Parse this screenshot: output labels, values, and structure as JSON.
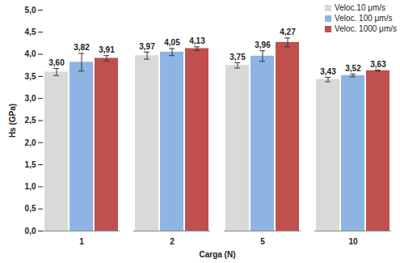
{
  "chart_data": {
    "type": "bar",
    "x_label": "Carga (N)",
    "y_label": "Hs (GPa)",
    "categories": [
      "1",
      "2",
      "5",
      "10"
    ],
    "series": [
      {
        "name": "Veloc.10 μm/s",
        "color": "#d9d9d9",
        "values": [
          3.6,
          3.97,
          3.75,
          3.43
        ],
        "value_labels": [
          "3,60",
          "3,97",
          "3,75",
          "3,43"
        ],
        "errors": [
          0.08,
          0.08,
          0.06,
          0.05
        ]
      },
      {
        "name": "Veloc. 100 μm/s",
        "color": "#8db4e2",
        "values": [
          3.82,
          4.05,
          3.96,
          3.52
        ],
        "value_labels": [
          "3,82",
          "4,05",
          "3,96",
          "3,52"
        ],
        "errors": [
          0.2,
          0.08,
          0.12,
          0.03
        ]
      },
      {
        "name": "Veloc. 1000 μm/s",
        "color": "#c0504d",
        "values": [
          3.91,
          4.13,
          4.27,
          3.63
        ],
        "value_labels": [
          "3,91",
          "4,13",
          "4,27",
          "3,63"
        ],
        "errors": [
          0.06,
          0.04,
          0.1,
          0.01
        ]
      }
    ],
    "ylim": [
      0,
      5
    ],
    "yticks": [
      {
        "value": 0,
        "label": "0,0"
      },
      {
        "value": 0.5,
        "label": "0,5"
      },
      {
        "value": 1,
        "label": "1,0"
      },
      {
        "value": 1.5,
        "label": "1,5"
      },
      {
        "value": 2,
        "label": "2,0"
      },
      {
        "value": 2.5,
        "label": "2,5"
      },
      {
        "value": 3,
        "label": "3,0"
      },
      {
        "value": 3.5,
        "label": "3,5"
      },
      {
        "value": 4,
        "label": "4,0"
      },
      {
        "value": 4.5,
        "label": "4,5"
      },
      {
        "value": 5,
        "label": "5,0"
      }
    ],
    "grid": false,
    "legend": "top-right",
    "data_labels": true
  }
}
